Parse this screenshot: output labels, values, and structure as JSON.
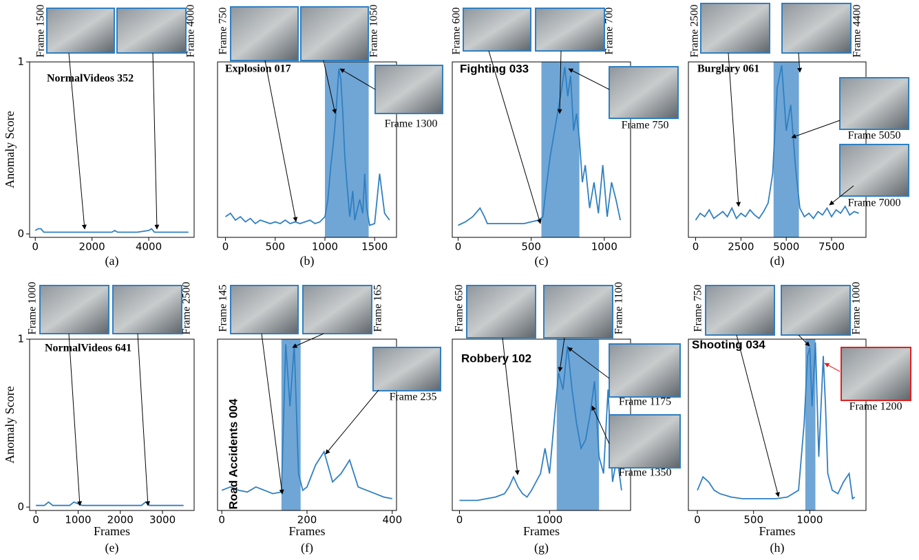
{
  "chart_data": [
    {
      "type": "line",
      "title": "NormalVideos 352",
      "caption": "(a)",
      "ylabel": "Anomaly Score",
      "x": [
        0,
        100,
        200,
        300,
        400,
        800,
        1200,
        1600,
        1700,
        2000,
        2400,
        2700,
        2800,
        2900,
        3200,
        3600,
        4000,
        4100,
        4200,
        4400,
        4800,
        5200,
        5400
      ],
      "values": [
        0.02,
        0.03,
        0.03,
        0.01,
        0.01,
        0.01,
        0.01,
        0.01,
        0.01,
        0.01,
        0.01,
        0.01,
        0.02,
        0.01,
        0.01,
        0.01,
        0.02,
        0.03,
        0.01,
        0.01,
        0.01,
        0.01,
        0.01
      ],
      "color": "#2f7fc1",
      "xlim": [
        -200,
        5600
      ],
      "ylim": [
        -0.02,
        1.0
      ],
      "xticks": [
        0,
        2000,
        4000
      ],
      "yticks": [
        0,
        1
      ],
      "frames": [
        "Frame 1500",
        "Frame 4000"
      ]
    },
    {
      "type": "line",
      "title": "Explosion 017",
      "caption": "(b)",
      "x": [
        0,
        50,
        100,
        150,
        200,
        250,
        300,
        350,
        400,
        450,
        500,
        550,
        600,
        650,
        700,
        750,
        800,
        850,
        900,
        950,
        1000,
        1030,
        1060,
        1080,
        1100,
        1120,
        1140,
        1160,
        1180,
        1200,
        1220,
        1250,
        1280,
        1300,
        1350,
        1380,
        1400,
        1420,
        1450,
        1500,
        1550,
        1600,
        1650
      ],
      "values": [
        0.1,
        0.12,
        0.08,
        0.1,
        0.07,
        0.09,
        0.06,
        0.08,
        0.07,
        0.06,
        0.07,
        0.06,
        0.08,
        0.06,
        0.07,
        0.06,
        0.07,
        0.08,
        0.06,
        0.07,
        0.1,
        0.2,
        0.4,
        0.5,
        0.62,
        0.78,
        0.96,
        0.9,
        0.7,
        0.45,
        0.3,
        0.1,
        0.25,
        0.08,
        0.2,
        0.12,
        0.35,
        0.15,
        0.05,
        0.06,
        0.35,
        0.12,
        0.08
      ],
      "color": "#2f7fc1",
      "xlim": [
        -80,
        1720
      ],
      "ylim": [
        -0.02,
        1.0
      ],
      "xticks": [
        0,
        500,
        1000,
        1500
      ],
      "shade": [
        1000,
        1440
      ],
      "shade_color": "#6fa6d6",
      "frames": [
        "Frame 750",
        "Frame 1050",
        "Frame 1300"
      ]
    },
    {
      "type": "line",
      "title": "Fighting 033",
      "caption": "(c)",
      "x": [
        0,
        50,
        100,
        150,
        180,
        200,
        250,
        300,
        350,
        400,
        450,
        500,
        550,
        580,
        600,
        630,
        660,
        690,
        710,
        730,
        750,
        770,
        790,
        810,
        830,
        850,
        870,
        900,
        930,
        960,
        990,
        1020,
        1050,
        1080,
        1110
      ],
      "values": [
        0.05,
        0.07,
        0.1,
        0.15,
        0.1,
        0.06,
        0.06,
        0.06,
        0.06,
        0.06,
        0.06,
        0.07,
        0.08,
        0.1,
        0.25,
        0.45,
        0.6,
        0.75,
        0.85,
        0.97,
        0.8,
        0.92,
        0.6,
        0.7,
        0.55,
        0.3,
        0.4,
        0.15,
        0.3,
        0.12,
        0.4,
        0.1,
        0.3,
        0.2,
        0.08
      ],
      "color": "#2f7fc1",
      "xlim": [
        -40,
        1180
      ],
      "ylim": [
        -0.02,
        1.0
      ],
      "xticks": [
        0,
        500,
        1000
      ],
      "shade": [
        570,
        830
      ],
      "shade_color": "#6fa6d6",
      "frames": [
        "Frame 600",
        "Frame 700",
        "Frame 750"
      ]
    },
    {
      "type": "line",
      "title": "Burglary 061",
      "caption": "(d)",
      "x": [
        0,
        250,
        500,
        750,
        1000,
        1250,
        1500,
        1750,
        2000,
        2250,
        2500,
        2750,
        3000,
        3250,
        3500,
        3750,
        4000,
        4250,
        4500,
        4750,
        5000,
        5250,
        5500,
        5750,
        6000,
        6250,
        6500,
        6750,
        7000,
        7250,
        7500,
        7750,
        8000,
        8250,
        8500,
        8750,
        9000
      ],
      "values": [
        0.08,
        0.12,
        0.1,
        0.14,
        0.09,
        0.11,
        0.13,
        0.1,
        0.15,
        0.09,
        0.12,
        0.1,
        0.14,
        0.11,
        0.09,
        0.13,
        0.18,
        0.35,
        0.85,
        0.98,
        0.6,
        0.75,
        0.4,
        0.15,
        0.1,
        0.12,
        0.09,
        0.13,
        0.11,
        0.15,
        0.1,
        0.14,
        0.12,
        0.16,
        0.11,
        0.13,
        0.12
      ],
      "color": "#2f7fc1",
      "xlim": [
        -400,
        9400
      ],
      "ylim": [
        -0.02,
        1.0
      ],
      "xticks": [
        0,
        2500,
        5000,
        7500
      ],
      "shade": [
        4300,
        5700
      ],
      "shade_color": "#6fa6d6",
      "frames": [
        "Frame 2500",
        "Frame 4400",
        "Frame 5050",
        "Frame 7000"
      ]
    },
    {
      "type": "line",
      "title": "NormalVideos 641",
      "caption": "(e)",
      "ylabel": "Anomaly Score",
      "xlabel": "Frames",
      "x": [
        0,
        200,
        300,
        400,
        600,
        800,
        900,
        1000,
        1100,
        1200,
        1500,
        1800,
        2000,
        2200,
        2400,
        2500,
        2600,
        2700,
        2800,
        3000,
        3200,
        3500
      ],
      "values": [
        0.01,
        0.01,
        0.03,
        0.01,
        0.01,
        0.01,
        0.03,
        0.02,
        0.01,
        0.01,
        0.01,
        0.01,
        0.01,
        0.01,
        0.01,
        0.01,
        0.03,
        0.01,
        0.01,
        0.01,
        0.01,
        0.01
      ],
      "color": "#2f7fc1",
      "xlim": [
        -150,
        3750
      ],
      "ylim": [
        -0.02,
        1.0
      ],
      "xticks": [
        0,
        1000,
        2000,
        3000
      ],
      "yticks": [
        0,
        1
      ],
      "frames": [
        "Frame 1000",
        "Frame 2500"
      ]
    },
    {
      "type": "line",
      "title": "Road Accidents 004",
      "caption": "(f)",
      "xlabel": "Frames",
      "x": [
        0,
        20,
        40,
        60,
        80,
        100,
        120,
        140,
        150,
        160,
        170,
        180,
        190,
        200,
        220,
        240,
        260,
        280,
        300,
        320,
        340,
        360,
        380,
        400
      ],
      "values": [
        0.1,
        0.12,
        0.1,
        0.09,
        0.12,
        0.1,
        0.08,
        0.09,
        0.97,
        0.6,
        0.97,
        0.2,
        0.1,
        0.12,
        0.25,
        0.33,
        0.15,
        0.2,
        0.28,
        0.12,
        0.1,
        0.08,
        0.06,
        0.05
      ],
      "color": "#2f7fc1",
      "xlim": [
        -10,
        410
      ],
      "ylim": [
        -0.02,
        1.0
      ],
      "xticks": [
        0,
        200,
        400
      ],
      "shade": [
        140,
        185
      ],
      "shade_color": "#6fa6d6",
      "frames": [
        "Frame 145",
        "Frame 165",
        "Frame 235"
      ]
    },
    {
      "type": "line",
      "title": "Robbery 102",
      "caption": "(g)",
      "xlabel": "Frames",
      "x": [
        0,
        100,
        200,
        300,
        400,
        500,
        550,
        600,
        650,
        700,
        750,
        800,
        850,
        900,
        950,
        1000,
        1050,
        1100,
        1150,
        1200,
        1250,
        1300,
        1350,
        1400,
        1450,
        1500,
        1550,
        1600,
        1650,
        1700,
        1750,
        1800
      ],
      "values": [
        0.04,
        0.04,
        0.04,
        0.05,
        0.06,
        0.08,
        0.12,
        0.18,
        0.12,
        0.08,
        0.06,
        0.1,
        0.15,
        0.2,
        0.35,
        0.2,
        0.5,
        0.8,
        0.7,
        0.96,
        0.7,
        0.5,
        0.35,
        0.4,
        0.55,
        0.75,
        0.3,
        0.2,
        0.7,
        0.15,
        0.3,
        0.1
      ],
      "color": "#2f7fc1",
      "xlim": [
        -80,
        1900
      ],
      "ylim": [
        -0.02,
        1.0
      ],
      "xticks": [
        0,
        1000
      ],
      "shade": [
        1080,
        1550
      ],
      "shade_color": "#6fa6d6",
      "frames": [
        "Frame 650",
        "Frame 1100",
        "Frame 1175",
        "Frame 1350"
      ]
    },
    {
      "type": "line",
      "title": "Shooting 034",
      "caption": "(h)",
      "xlabel": "Frames",
      "x": [
        0,
        50,
        100,
        150,
        200,
        300,
        400,
        500,
        600,
        700,
        800,
        900,
        950,
        980,
        1000,
        1020,
        1050,
        1080,
        1100,
        1120,
        1140,
        1160,
        1200,
        1250,
        1300,
        1350,
        1380,
        1400
      ],
      "values": [
        0.1,
        0.18,
        0.15,
        0.1,
        0.08,
        0.06,
        0.05,
        0.05,
        0.05,
        0.05,
        0.06,
        0.1,
        0.5,
        0.9,
        0.95,
        0.6,
        0.98,
        0.3,
        0.6,
        0.9,
        0.6,
        0.2,
        0.1,
        0.08,
        0.15,
        0.2,
        0.05,
        0.06
      ],
      "color": "#2f7fc1",
      "xlim": [
        -80,
        1500
      ],
      "ylim": [
        -0.02,
        1.0
      ],
      "xticks": [
        0,
        500,
        1000
      ],
      "shade": [
        960,
        1050
      ],
      "shade_color": "#6fa6d6",
      "frames": [
        "Frame 750",
        "Frame 1000",
        "Frame 1200"
      ]
    }
  ]
}
